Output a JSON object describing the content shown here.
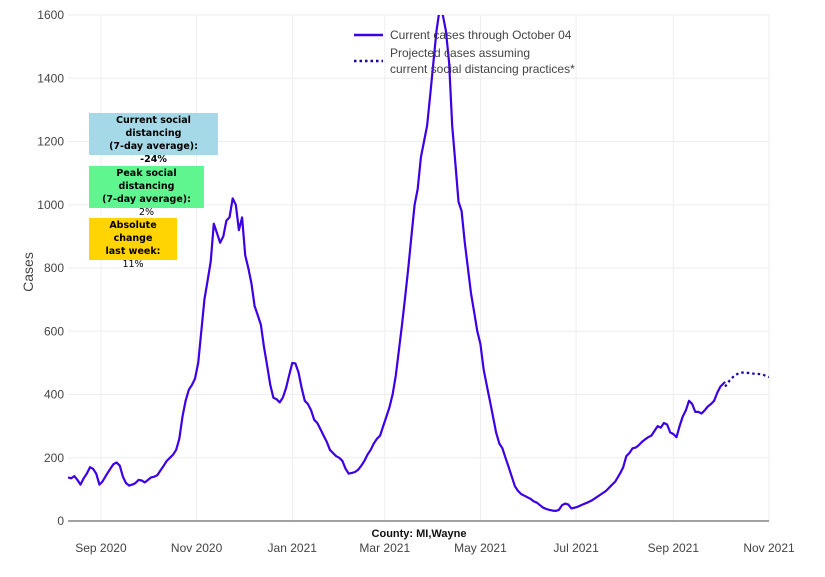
{
  "chart_data": {
    "type": "line",
    "ylabel": "Cases",
    "xlabel": "",
    "caption": "County: MI,Wayne",
    "ylim": [
      0,
      1600
    ],
    "yticks": [
      0,
      200,
      400,
      600,
      800,
      1000,
      1200,
      1400,
      1600
    ],
    "xlim": [
      "2020-08-11",
      "2021-11-01"
    ],
    "xticks": [
      {
        "date": "2020-09-01",
        "label": "Sep 2020"
      },
      {
        "date": "2020-11-01",
        "label": "Nov 2020"
      },
      {
        "date": "2021-01-01",
        "label": "Jan 2021"
      },
      {
        "date": "2021-03-01",
        "label": "Mar 2021"
      },
      {
        "date": "2021-05-01",
        "label": "May 2021"
      },
      {
        "date": "2021-07-01",
        "label": "Jul 2021"
      },
      {
        "date": "2021-09-01",
        "label": "Sep 2021"
      },
      {
        "date": "2021-11-01",
        "label": "Nov 2021"
      }
    ],
    "grid": true,
    "legend_position": "top-right",
    "colors": {
      "line": "#3d00e6",
      "projection": "#1a00a8"
    },
    "series": [
      {
        "name": "Current cases through October 04",
        "style": "solid",
        "points": [
          [
            "2020-08-11",
            138
          ],
          [
            "2020-08-13",
            135
          ],
          [
            "2020-08-15",
            142
          ],
          [
            "2020-08-17",
            130
          ],
          [
            "2020-08-19",
            115
          ],
          [
            "2020-08-21",
            135
          ],
          [
            "2020-08-23",
            150
          ],
          [
            "2020-08-25",
            170
          ],
          [
            "2020-08-27",
            165
          ],
          [
            "2020-08-29",
            150
          ],
          [
            "2020-08-31",
            115
          ],
          [
            "2020-09-02",
            125
          ],
          [
            "2020-09-05",
            150
          ],
          [
            "2020-09-07",
            165
          ],
          [
            "2020-09-09",
            180
          ],
          [
            "2020-09-11",
            185
          ],
          [
            "2020-09-13",
            175
          ],
          [
            "2020-09-15",
            140
          ],
          [
            "2020-09-17",
            120
          ],
          [
            "2020-09-19",
            112
          ],
          [
            "2020-09-21",
            115
          ],
          [
            "2020-09-23",
            120
          ],
          [
            "2020-09-25",
            130
          ],
          [
            "2020-09-27",
            128
          ],
          [
            "2020-09-29",
            122
          ],
          [
            "2020-10-01",
            130
          ],
          [
            "2020-10-03",
            138
          ],
          [
            "2020-10-05",
            140
          ],
          [
            "2020-10-07",
            145
          ],
          [
            "2020-10-09",
            160
          ],
          [
            "2020-10-11",
            175
          ],
          [
            "2020-10-13",
            190
          ],
          [
            "2020-10-15",
            200
          ],
          [
            "2020-10-17",
            210
          ],
          [
            "2020-10-19",
            225
          ],
          [
            "2020-10-21",
            260
          ],
          [
            "2020-10-23",
            330
          ],
          [
            "2020-10-25",
            380
          ],
          [
            "2020-10-27",
            415
          ],
          [
            "2020-10-29",
            430
          ],
          [
            "2020-10-31",
            450
          ],
          [
            "2020-11-02",
            500
          ],
          [
            "2020-11-04",
            600
          ],
          [
            "2020-11-06",
            700
          ],
          [
            "2020-11-08",
            760
          ],
          [
            "2020-11-10",
            820
          ],
          [
            "2020-11-12",
            940
          ],
          [
            "2020-11-14",
            910
          ],
          [
            "2020-11-16",
            880
          ],
          [
            "2020-11-18",
            900
          ],
          [
            "2020-11-20",
            950
          ],
          [
            "2020-11-22",
            960
          ],
          [
            "2020-11-24",
            1020
          ],
          [
            "2020-11-26",
            1000
          ],
          [
            "2020-11-28",
            920
          ],
          [
            "2020-11-30",
            960
          ],
          [
            "2020-12-02",
            840
          ],
          [
            "2020-12-04",
            800
          ],
          [
            "2020-12-06",
            750
          ],
          [
            "2020-12-08",
            680
          ],
          [
            "2020-12-10",
            650
          ],
          [
            "2020-12-12",
            620
          ],
          [
            "2020-12-14",
            550
          ],
          [
            "2020-12-16",
            490
          ],
          [
            "2020-12-18",
            430
          ],
          [
            "2020-12-20",
            390
          ],
          [
            "2020-12-22",
            385
          ],
          [
            "2020-12-24",
            375
          ],
          [
            "2020-12-26",
            390
          ],
          [
            "2020-12-28",
            420
          ],
          [
            "2020-12-30",
            460
          ],
          [
            "2021-01-01",
            500
          ],
          [
            "2021-01-03",
            498
          ],
          [
            "2021-01-05",
            470
          ],
          [
            "2021-01-07",
            420
          ],
          [
            "2021-01-09",
            380
          ],
          [
            "2021-01-11",
            370
          ],
          [
            "2021-01-13",
            350
          ],
          [
            "2021-01-15",
            320
          ],
          [
            "2021-01-17",
            310
          ],
          [
            "2021-01-19",
            290
          ],
          [
            "2021-01-21",
            270
          ],
          [
            "2021-01-23",
            250
          ],
          [
            "2021-01-25",
            225
          ],
          [
            "2021-01-27",
            215
          ],
          [
            "2021-01-29",
            205
          ],
          [
            "2021-01-31",
            200
          ],
          [
            "2021-02-02",
            190
          ],
          [
            "2021-02-04",
            165
          ],
          [
            "2021-02-06",
            150
          ],
          [
            "2021-02-08",
            152
          ],
          [
            "2021-02-10",
            155
          ],
          [
            "2021-02-12",
            162
          ],
          [
            "2021-02-14",
            175
          ],
          [
            "2021-02-16",
            190
          ],
          [
            "2021-02-18",
            210
          ],
          [
            "2021-02-20",
            225
          ],
          [
            "2021-02-22",
            245
          ],
          [
            "2021-02-24",
            260
          ],
          [
            "2021-02-26",
            270
          ],
          [
            "2021-02-28",
            300
          ],
          [
            "2021-03-02",
            330
          ],
          [
            "2021-03-04",
            360
          ],
          [
            "2021-03-06",
            400
          ],
          [
            "2021-03-08",
            460
          ],
          [
            "2021-03-10",
            540
          ],
          [
            "2021-03-12",
            620
          ],
          [
            "2021-03-14",
            710
          ],
          [
            "2021-03-16",
            800
          ],
          [
            "2021-03-18",
            900
          ],
          [
            "2021-03-20",
            1000
          ],
          [
            "2021-03-22",
            1050
          ],
          [
            "2021-03-24",
            1150
          ],
          [
            "2021-03-26",
            1200
          ],
          [
            "2021-03-28",
            1250
          ],
          [
            "2021-03-30",
            1350
          ],
          [
            "2021-04-01",
            1450
          ],
          [
            "2021-04-03",
            1550
          ],
          [
            "2021-04-05",
            1620
          ],
          [
            "2021-04-07",
            1600
          ],
          [
            "2021-04-09",
            1550
          ],
          [
            "2021-04-11",
            1450
          ],
          [
            "2021-04-13",
            1250
          ],
          [
            "2021-04-15",
            1130
          ],
          [
            "2021-04-17",
            1010
          ],
          [
            "2021-04-19",
            980
          ],
          [
            "2021-04-21",
            880
          ],
          [
            "2021-04-23",
            800
          ],
          [
            "2021-04-25",
            720
          ],
          [
            "2021-04-27",
            660
          ],
          [
            "2021-04-29",
            600
          ],
          [
            "2021-05-01",
            560
          ],
          [
            "2021-05-03",
            480
          ],
          [
            "2021-05-05",
            430
          ],
          [
            "2021-05-07",
            380
          ],
          [
            "2021-05-09",
            330
          ],
          [
            "2021-05-11",
            280
          ],
          [
            "2021-05-13",
            245
          ],
          [
            "2021-05-15",
            230
          ],
          [
            "2021-05-17",
            200
          ],
          [
            "2021-05-19",
            170
          ],
          [
            "2021-05-21",
            140
          ],
          [
            "2021-05-23",
            110
          ],
          [
            "2021-05-25",
            95
          ],
          [
            "2021-05-27",
            85
          ],
          [
            "2021-05-29",
            80
          ],
          [
            "2021-05-31",
            75
          ],
          [
            "2021-06-02",
            70
          ],
          [
            "2021-06-04",
            62
          ],
          [
            "2021-06-06",
            58
          ],
          [
            "2021-06-08",
            50
          ],
          [
            "2021-06-10",
            42
          ],
          [
            "2021-06-12",
            38
          ],
          [
            "2021-06-14",
            35
          ],
          [
            "2021-06-16",
            33
          ],
          [
            "2021-06-18",
            32
          ],
          [
            "2021-06-20",
            35
          ],
          [
            "2021-06-22",
            50
          ],
          [
            "2021-06-24",
            55
          ],
          [
            "2021-06-26",
            52
          ],
          [
            "2021-06-28",
            40
          ],
          [
            "2021-06-30",
            42
          ],
          [
            "2021-07-02",
            45
          ],
          [
            "2021-07-05",
            52
          ],
          [
            "2021-07-08",
            58
          ],
          [
            "2021-07-11",
            65
          ],
          [
            "2021-07-14",
            75
          ],
          [
            "2021-07-17",
            85
          ],
          [
            "2021-07-20",
            95
          ],
          [
            "2021-07-23",
            110
          ],
          [
            "2021-07-26",
            125
          ],
          [
            "2021-07-29",
            150
          ],
          [
            "2021-07-31",
            170
          ],
          [
            "2021-08-02",
            205
          ],
          [
            "2021-08-04",
            215
          ],
          [
            "2021-08-06",
            230
          ],
          [
            "2021-08-08",
            232
          ],
          [
            "2021-08-10",
            240
          ],
          [
            "2021-08-12",
            250
          ],
          [
            "2021-08-14",
            258
          ],
          [
            "2021-08-16",
            265
          ],
          [
            "2021-08-18",
            270
          ],
          [
            "2021-08-20",
            285
          ],
          [
            "2021-08-22",
            300
          ],
          [
            "2021-08-24",
            295
          ],
          [
            "2021-08-26",
            310
          ],
          [
            "2021-08-28",
            305
          ],
          [
            "2021-08-30",
            280
          ],
          [
            "2021-09-01",
            275
          ],
          [
            "2021-09-03",
            265
          ],
          [
            "2021-09-05",
            300
          ],
          [
            "2021-09-07",
            330
          ],
          [
            "2021-09-09",
            350
          ],
          [
            "2021-09-11",
            380
          ],
          [
            "2021-09-13",
            370
          ],
          [
            "2021-09-15",
            345
          ],
          [
            "2021-09-17",
            345
          ],
          [
            "2021-09-19",
            340
          ],
          [
            "2021-09-21",
            350
          ],
          [
            "2021-09-23",
            362
          ],
          [
            "2021-09-25",
            370
          ],
          [
            "2021-09-27",
            380
          ],
          [
            "2021-09-29",
            405
          ],
          [
            "2021-10-01",
            425
          ],
          [
            "2021-10-04",
            440
          ]
        ]
      },
      {
        "name": "Projected cases assuming current social distancing practices*",
        "style": "dotted",
        "points": [
          [
            "2021-10-04",
            425
          ],
          [
            "2021-10-07",
            445
          ],
          [
            "2021-10-10",
            460
          ],
          [
            "2021-10-13",
            468
          ],
          [
            "2021-10-16",
            470
          ],
          [
            "2021-10-19",
            468
          ],
          [
            "2021-10-22",
            466
          ],
          [
            "2021-10-25",
            465
          ],
          [
            "2021-10-28",
            463
          ],
          [
            "2021-11-01",
            455
          ]
        ]
      }
    ]
  },
  "legend": {
    "current": "Current cases through October 04",
    "projected_line1": "Projected cases assuming",
    "projected_line2": "current social distancing practices*"
  },
  "annotations": [
    {
      "key": "current",
      "title_line1": "Current social distancing",
      "title_line2": "(7-day average):",
      "value": "-24%",
      "value_bold": true,
      "color": "#a6d9e8"
    },
    {
      "key": "peak",
      "title_line1": "Peak social distancing",
      "title_line2": "(7-day average):",
      "value": "2%",
      "value_bold": false,
      "color": "#5ff58f"
    },
    {
      "key": "change",
      "title_line1": "Absolute change",
      "title_line2": "last week:",
      "value": "11%",
      "value_bold": false,
      "color": "#ffd400"
    }
  ]
}
